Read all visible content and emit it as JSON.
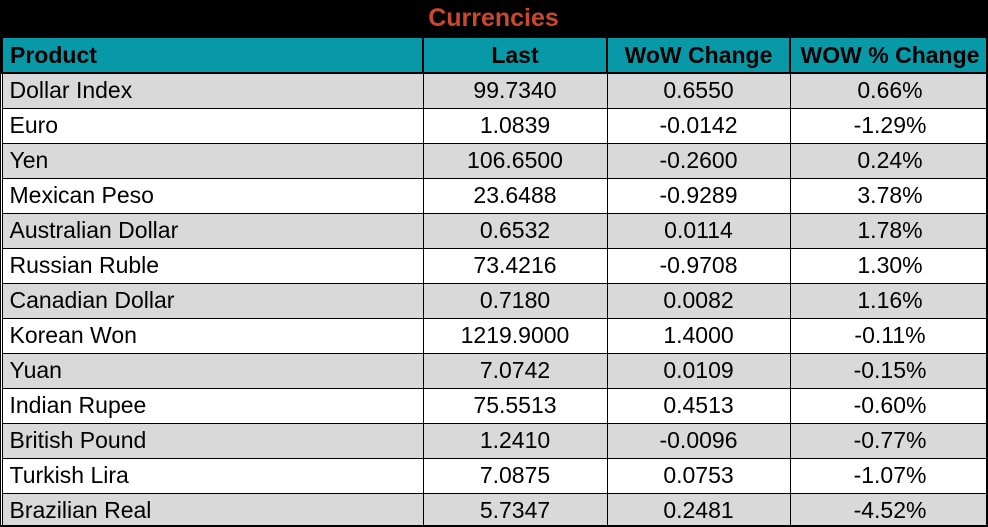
{
  "colors": {
    "title_bg": "#000000",
    "title_text": "#C8492B",
    "header_bg": "#0899A8",
    "header_text": "#000000",
    "row_alt": "#D9D9D9",
    "row_base": "#FFFFFF",
    "border": "#000000",
    "body_text": "#000000"
  },
  "chart_data": {
    "type": "table",
    "title": "Currencies",
    "columns": [
      "Product",
      "Last",
      "WoW Change",
      "WOW % Change"
    ],
    "rows": [
      [
        "Dollar Index",
        "99.7340",
        "0.6550",
        "0.66%"
      ],
      [
        "Euro",
        "1.0839",
        "-0.0142",
        "-1.29%"
      ],
      [
        "Yen",
        "106.6500",
        "-0.2600",
        "0.24%"
      ],
      [
        "Mexican Peso",
        "23.6488",
        "-0.9289",
        "3.78%"
      ],
      [
        "Australian Dollar",
        "0.6532",
        "0.0114",
        "1.78%"
      ],
      [
        "Russian Ruble",
        "73.4216",
        "-0.9708",
        "1.30%"
      ],
      [
        "Canadian Dollar",
        "0.7180",
        "0.0082",
        "1.16%"
      ],
      [
        "Korean Won",
        "1219.9000",
        "1.4000",
        "-0.11%"
      ],
      [
        "Yuan",
        "7.0742",
        "0.0109",
        "-0.15%"
      ],
      [
        "Indian Rupee",
        "75.5513",
        "0.4513",
        "-0.60%"
      ],
      [
        "British Pound",
        "1.2410",
        "-0.0096",
        "-0.77%"
      ],
      [
        "Turkish Lira",
        "7.0875",
        "0.0753",
        "-1.07%"
      ],
      [
        "Brazilian Real",
        "5.7347",
        "0.2481",
        "-4.52%"
      ]
    ]
  }
}
